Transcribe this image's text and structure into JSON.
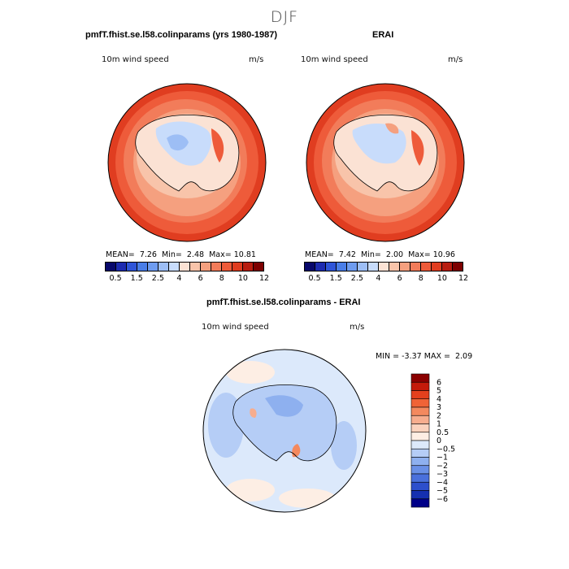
{
  "figure": {
    "title": "DJF"
  },
  "panels": [
    {
      "id": "model",
      "header": "pmfT.fhist.se.l58.colinparams (yrs 1980-1987)",
      "variable": "10m wind speed",
      "units": "m/s",
      "stats": {
        "mean_label": "MEAN=",
        "mean": "7.26",
        "min_label": "Min=",
        "min": "2.48",
        "max_label": "Max=",
        "max": "10.81"
      }
    },
    {
      "id": "erai",
      "header": "ERAI",
      "variable": "10m wind speed",
      "units": "m/s",
      "stats": {
        "mean_label": "MEAN=",
        "mean": "7.42",
        "min_label": "Min=",
        "min": "2.00",
        "max_label": "Max=",
        "max": "10.96"
      }
    },
    {
      "id": "diff",
      "header": "pmfT.fhist.se.l58.colinparams - ERAI",
      "variable": "10m wind speed",
      "units": "m/s",
      "stats": {
        "min_label": "MIN =",
        "min": "-3.37",
        "max_label": "MAX =",
        "max": "2.09"
      }
    }
  ],
  "chart_data": [
    {
      "type": "heatmap",
      "title": "10m wind speed",
      "units": "m/s",
      "projection": "south polar stereographic",
      "colorbar": {
        "orientation": "horizontal",
        "levels": [
          0.5,
          1,
          1.5,
          2,
          2.5,
          3,
          4,
          5,
          6,
          7,
          8,
          9,
          10,
          11,
          12
        ],
        "tick_labels": [
          "0.5",
          "1.5",
          "2.5",
          "4",
          "6",
          "8",
          "10",
          "12"
        ],
        "colors": [
          "#08086b",
          "#1d2bb0",
          "#2f55d8",
          "#4a7ee8",
          "#6e9cf0",
          "#9dbef5",
          "#c8dcfb",
          "#fbe2d4",
          "#f8c4aa",
          "#f5a07f",
          "#f27c5a",
          "#ee5b3a",
          "#e03d20",
          "#b81d10",
          "#7d0000"
        ]
      },
      "stats": {
        "mean": 7.26,
        "min": 2.48,
        "max": 10.81
      }
    },
    {
      "type": "heatmap",
      "title": "10m wind speed",
      "units": "m/s",
      "projection": "south polar stereographic",
      "colorbar": {
        "orientation": "horizontal",
        "levels": [
          0.5,
          1,
          1.5,
          2,
          2.5,
          3,
          4,
          5,
          6,
          7,
          8,
          9,
          10,
          11,
          12
        ],
        "tick_labels": [
          "0.5",
          "1.5",
          "2.5",
          "4",
          "6",
          "8",
          "10",
          "12"
        ],
        "colors": [
          "#08086b",
          "#1d2bb0",
          "#2f55d8",
          "#4a7ee8",
          "#6e9cf0",
          "#9dbef5",
          "#c8dcfb",
          "#fbe2d4",
          "#f8c4aa",
          "#f5a07f",
          "#f27c5a",
          "#ee5b3a",
          "#e03d20",
          "#b81d10",
          "#7d0000"
        ]
      },
      "stats": {
        "mean": 7.42,
        "min": 2.0,
        "max": 10.96
      }
    },
    {
      "type": "heatmap",
      "title": "10m wind speed",
      "units": "m/s",
      "projection": "south polar stereographic",
      "colorbar": {
        "orientation": "vertical",
        "levels": [
          6,
          5,
          4,
          3,
          2,
          1,
          0.5,
          0,
          -0.5,
          -1,
          -2,
          -3,
          -4,
          -5,
          -6
        ],
        "tick_labels": [
          "6",
          "5",
          "4",
          "3",
          "2",
          "1",
          "0.5",
          "0",
          "−0.5",
          "−1",
          "−2",
          "−3",
          "−4",
          "−5",
          "−6"
        ],
        "colors": [
          "#8b0000",
          "#c41a0a",
          "#e4401d",
          "#f06336",
          "#f4895e",
          "#f7ad8e",
          "#fbd2bd",
          "#fdeee4",
          "#dce9fb",
          "#b5cdf6",
          "#8eb0ef",
          "#6a90e6",
          "#4a70dc",
          "#2d4fcc",
          "#1530b0",
          "#000088"
        ]
      },
      "stats": {
        "min": -3.37,
        "max": 2.09
      }
    }
  ]
}
